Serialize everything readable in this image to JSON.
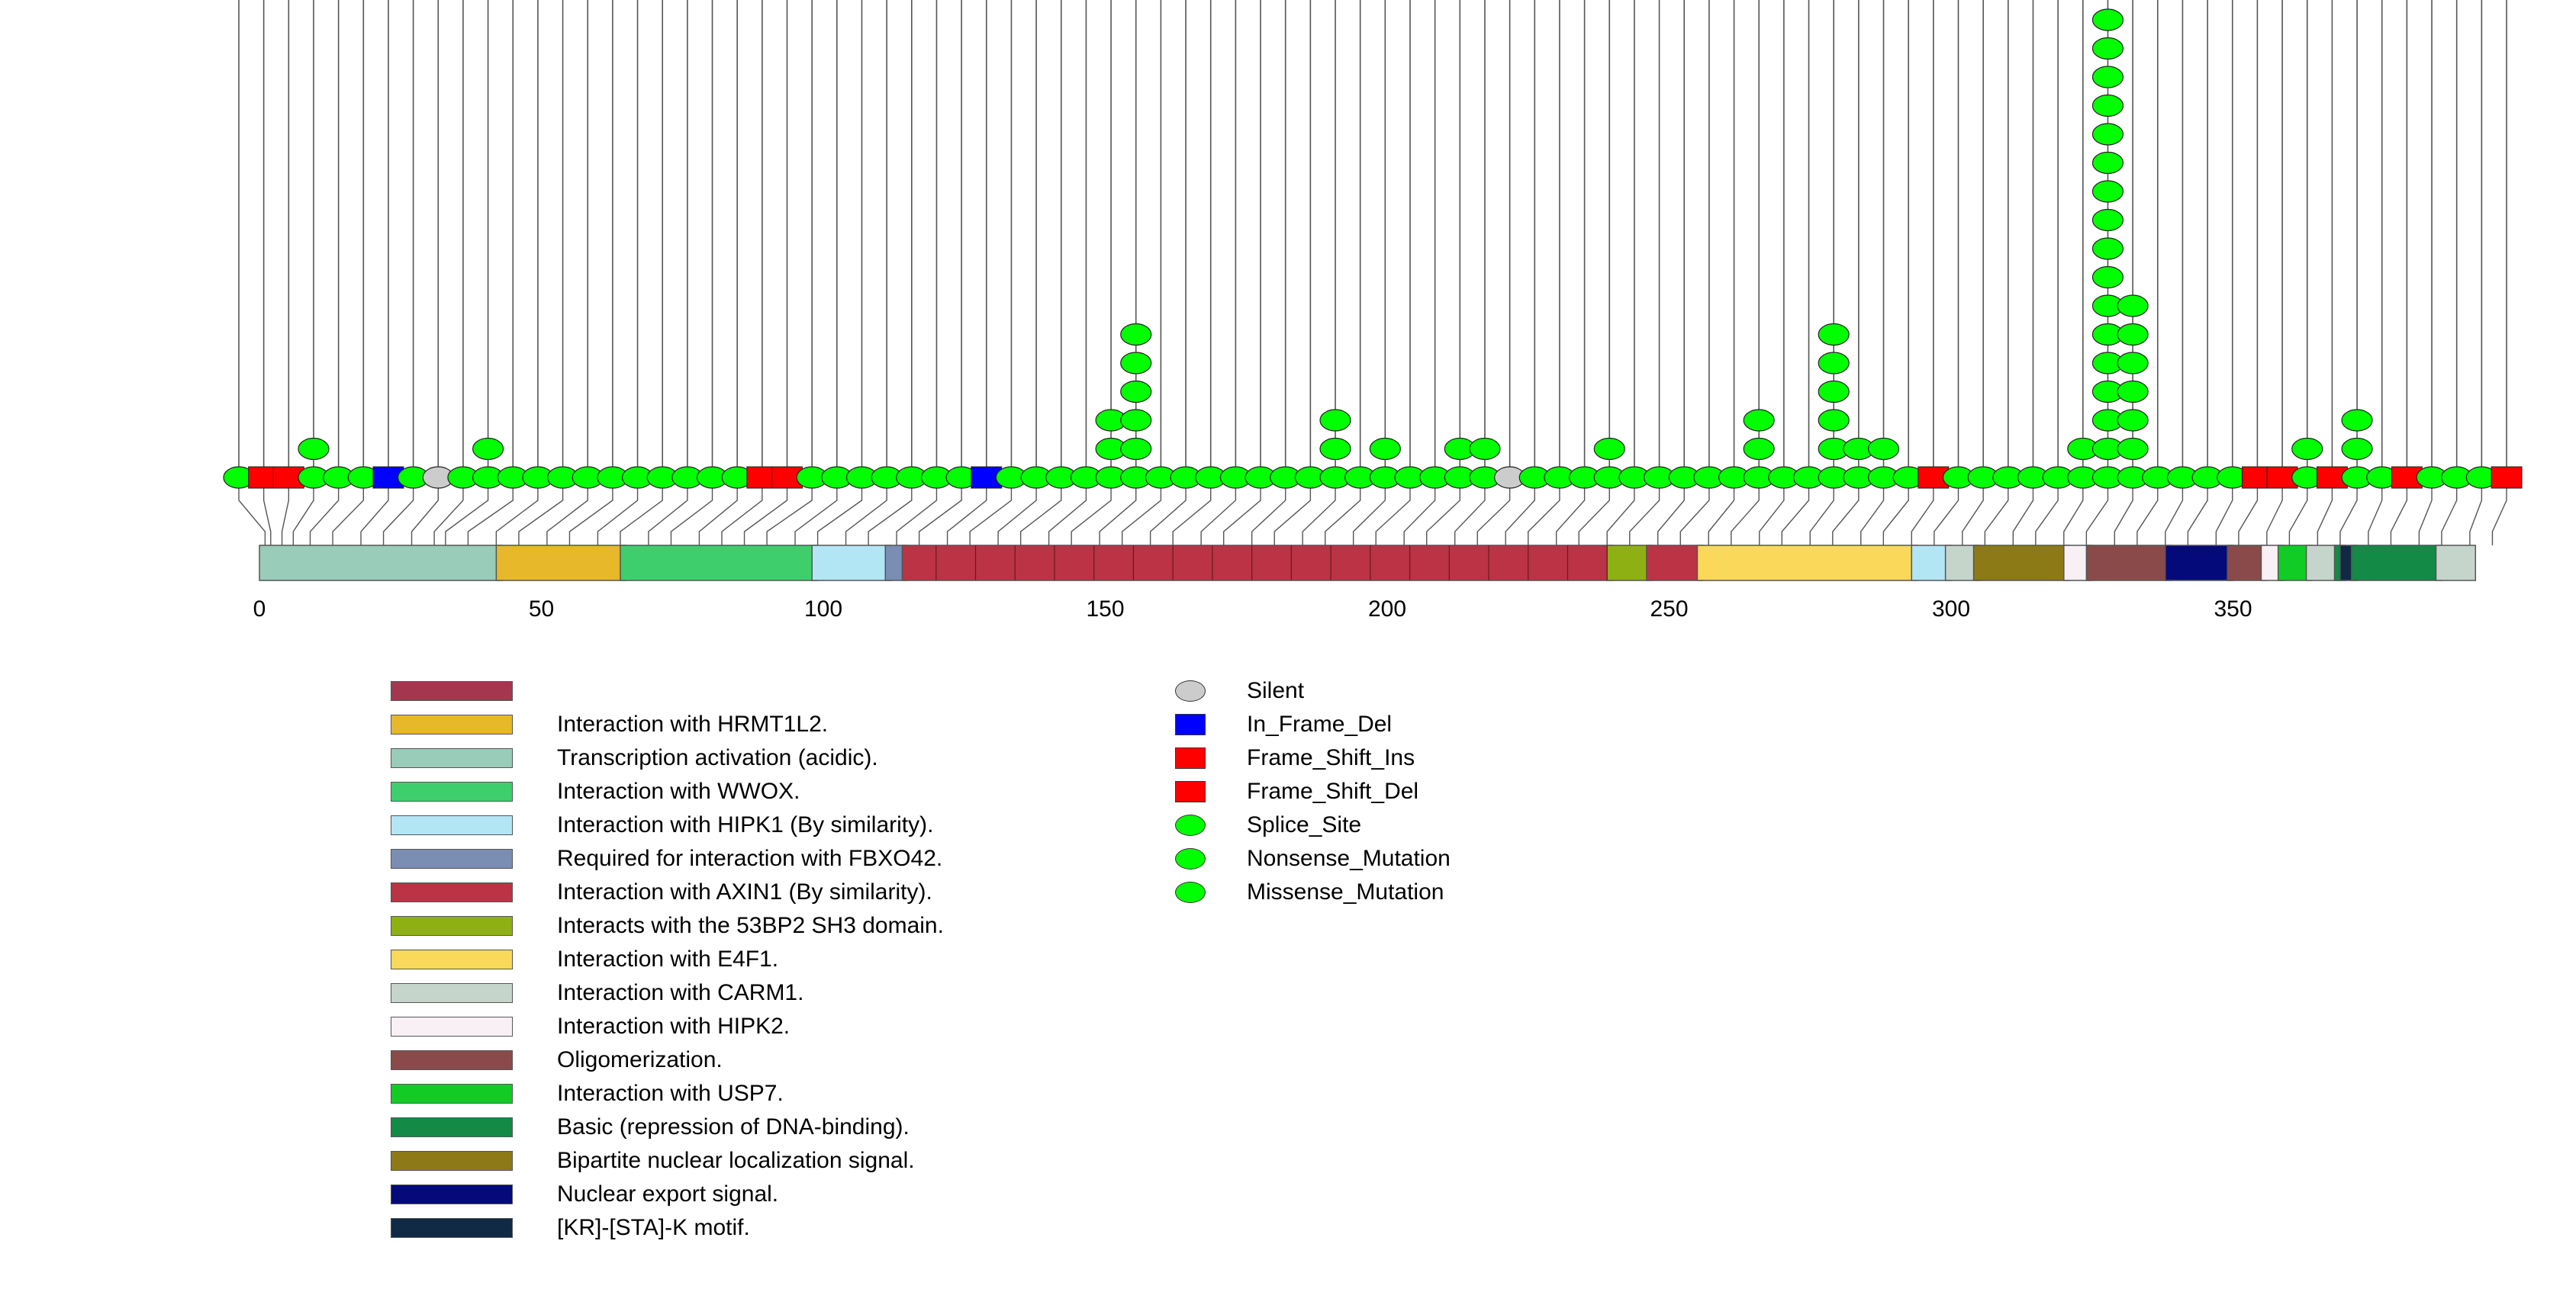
{
  "chart_data": {
    "type": "lollipop",
    "protein_length": 393,
    "x_ticks": [
      0,
      50,
      100,
      150,
      200,
      250,
      300,
      350
    ],
    "domains": [
      {
        "name": "Transcription activation (acidic).",
        "start": 1,
        "end": 43,
        "color": "#99CCB9"
      },
      {
        "name": "Interaction with HRMT1L2.",
        "start": 43,
        "end": 65,
        "color": "#E6B82A"
      },
      {
        "name": "Interaction with WWOX.",
        "start": 65,
        "end": 99,
        "color": "#3ECF6C"
      },
      {
        "name": "Interaction with HIPK1 (By similarity).",
        "start": 99,
        "end": 112,
        "color": "#B3E6F5"
      },
      {
        "name": "Required for interaction with FBXO42.",
        "start": 112,
        "end": 115,
        "color": "#7A8DB3"
      },
      {
        "name": "Interaction with AXIN1 (By similarity).",
        "start": 115,
        "end": 240,
        "color": "#BB3344"
      },
      {
        "name": "Interacts with the 53BP2 SH3 domain.",
        "start": 240,
        "end": 247,
        "color": "#8FB012"
      },
      {
        "name": "Interaction with AXIN1 (By similarity).",
        "start": 247,
        "end": 256,
        "color": "#BB3344"
      },
      {
        "name": "Interaction with E4F1.",
        "start": 256,
        "end": 294,
        "color": "#FAD85A"
      },
      {
        "name": "Interaction with HIPK1 (By similarity).",
        "start": 294,
        "end": 300,
        "color": "#B3E6F5"
      },
      {
        "name": "Interaction with CARM1.",
        "start": 300,
        "end": 305,
        "color": "#C6D5CC"
      },
      {
        "name": "Bipartite nuclear localization signal.",
        "start": 305,
        "end": 321,
        "color": "#8C7A16"
      },
      {
        "name": "Interaction with HIPK2.",
        "start": 321,
        "end": 325,
        "color": "#F8F0F5"
      },
      {
        "name": "Oligomerization.",
        "start": 325,
        "end": 339,
        "color": "#8A4A4A"
      },
      {
        "name": "Nuclear export signal.",
        "start": 339,
        "end": 350,
        "color": "#050A7A"
      },
      {
        "name": "Oligomerization.",
        "start": 350,
        "end": 356,
        "color": "#8A4A4A"
      },
      {
        "name": "Interaction with HIPK2.",
        "start": 356,
        "end": 359,
        "color": "#F8F0F5"
      },
      {
        "name": "Interaction with USP7.",
        "start": 359,
        "end": 364,
        "color": "#12CC25"
      },
      {
        "name": "Interaction with CARM1.",
        "start": 364,
        "end": 369,
        "color": "#C6D5CC"
      },
      {
        "name": "Basic (repression of DNA-binding).",
        "start": 369,
        "end": 370,
        "color": "#138A45"
      },
      {
        "name": "[KR]-[STA]-K motif.",
        "start": 370,
        "end": 372,
        "color": "#102A45"
      },
      {
        "name": "Basic (repression of DNA-binding).",
        "start": 372,
        "end": 387,
        "color": "#138A45"
      },
      {
        "name": "Interaction with CARM1.",
        "start": 387,
        "end": 393,
        "color": "#C6D5CC"
      }
    ],
    "mutations": [
      {
        "pos": 1,
        "count": 1,
        "type": "Missense_Mutation"
      },
      {
        "pos": 2,
        "count": 1,
        "type": "Frame_Shift_Del"
      },
      {
        "pos": 4,
        "count": 1,
        "type": "Frame_Shift_Del"
      },
      {
        "pos": 6,
        "count": 2,
        "type": "Missense_Mutation"
      },
      {
        "pos": 9,
        "count": 1,
        "type": "Missense_Mutation"
      },
      {
        "pos": 13,
        "count": 1,
        "type": "Missense_Mutation"
      },
      {
        "pos": 18,
        "count": 1,
        "type": "In_Frame_Del"
      },
      {
        "pos": 22,
        "count": 1,
        "type": "Missense_Mutation"
      },
      {
        "pos": 27,
        "count": 1,
        "type": "Silent"
      },
      {
        "pos": 31,
        "count": 1,
        "type": "Missense_Mutation"
      },
      {
        "pos": 33,
        "count": 2,
        "type": "Missense_Mutation"
      },
      {
        "pos": 37,
        "count": 1,
        "type": "Missense_Mutation"
      },
      {
        "pos": 42,
        "count": 1,
        "type": "Missense_Mutation"
      },
      {
        "pos": 46,
        "count": 1,
        "type": "Missense_Mutation"
      },
      {
        "pos": 51,
        "count": 1,
        "type": "Missense_Mutation"
      },
      {
        "pos": 55,
        "count": 1,
        "type": "Missense_Mutation"
      },
      {
        "pos": 60,
        "count": 1,
        "type": "Missense_Mutation"
      },
      {
        "pos": 64,
        "count": 1,
        "type": "Missense_Mutation"
      },
      {
        "pos": 69,
        "count": 1,
        "type": "Missense_Mutation"
      },
      {
        "pos": 73,
        "count": 1,
        "type": "Missense_Mutation"
      },
      {
        "pos": 78,
        "count": 1,
        "type": "Missense_Mutation"
      },
      {
        "pos": 82,
        "count": 1,
        "type": "Frame_Shift_Ins"
      },
      {
        "pos": 86,
        "count": 1,
        "type": "Frame_Shift_Del"
      },
      {
        "pos": 90,
        "count": 1,
        "type": "Missense_Mutation"
      },
      {
        "pos": 95,
        "count": 1,
        "type": "Missense_Mutation"
      },
      {
        "pos": 99,
        "count": 1,
        "type": "Missense_Mutation"
      },
      {
        "pos": 104,
        "count": 1,
        "type": "Missense_Mutation"
      },
      {
        "pos": 108,
        "count": 1,
        "type": "Missense_Mutation"
      },
      {
        "pos": 113,
        "count": 1,
        "type": "Missense_Mutation"
      },
      {
        "pos": 117,
        "count": 1,
        "type": "Missense_Mutation"
      },
      {
        "pos": 122,
        "count": 1,
        "type": "In_Frame_Del"
      },
      {
        "pos": 126,
        "count": 1,
        "type": "Missense_Mutation"
      },
      {
        "pos": 131,
        "count": 1,
        "type": "Missense_Mutation"
      },
      {
        "pos": 135,
        "count": 1,
        "type": "Missense_Mutation"
      },
      {
        "pos": 140,
        "count": 1,
        "type": "Missense_Mutation"
      },
      {
        "pos": 144,
        "count": 3,
        "type": "Missense_Mutation"
      },
      {
        "pos": 149,
        "count": 6,
        "type": "Missense_Mutation"
      },
      {
        "pos": 153,
        "count": 1,
        "type": "Missense_Mutation"
      },
      {
        "pos": 158,
        "count": 1,
        "type": "Missense_Mutation"
      },
      {
        "pos": 162,
        "count": 1,
        "type": "Missense_Mutation"
      },
      {
        "pos": 167,
        "count": 1,
        "type": "Missense_Mutation"
      },
      {
        "pos": 171,
        "count": 1,
        "type": "Missense_Mutation"
      },
      {
        "pos": 176,
        "count": 1,
        "type": "Missense_Mutation"
      },
      {
        "pos": 180,
        "count": 1,
        "type": "Missense_Mutation"
      },
      {
        "pos": 185,
        "count": 3,
        "type": "Missense_Mutation"
      },
      {
        "pos": 189,
        "count": 1,
        "type": "Missense_Mutation"
      },
      {
        "pos": 194,
        "count": 2,
        "type": "Missense_Mutation"
      },
      {
        "pos": 198,
        "count": 1,
        "type": "Missense_Mutation"
      },
      {
        "pos": 203,
        "count": 1,
        "type": "Missense_Mutation"
      },
      {
        "pos": 207,
        "count": 2,
        "type": "Missense_Mutation"
      },
      {
        "pos": 212,
        "count": 2,
        "type": "Missense_Mutation"
      },
      {
        "pos": 216,
        "count": 1,
        "type": "Silent"
      },
      {
        "pos": 221,
        "count": 1,
        "type": "Missense_Mutation"
      },
      {
        "pos": 225,
        "count": 1,
        "type": "Missense_Mutation"
      },
      {
        "pos": 230,
        "count": 1,
        "type": "Missense_Mutation"
      },
      {
        "pos": 234,
        "count": 2,
        "type": "Missense_Mutation"
      },
      {
        "pos": 239,
        "count": 1,
        "type": "Missense_Mutation"
      },
      {
        "pos": 243,
        "count": 1,
        "type": "Missense_Mutation"
      },
      {
        "pos": 248,
        "count": 1,
        "type": "Missense_Mutation"
      },
      {
        "pos": 252,
        "count": 1,
        "type": "Missense_Mutation"
      },
      {
        "pos": 257,
        "count": 1,
        "type": "Missense_Mutation"
      },
      {
        "pos": 261,
        "count": 3,
        "type": "Missense_Mutation"
      },
      {
        "pos": 266,
        "count": 1,
        "type": "Missense_Mutation"
      },
      {
        "pos": 270,
        "count": 1,
        "type": "Missense_Mutation"
      },
      {
        "pos": 275,
        "count": 6,
        "type": "Missense_Mutation"
      },
      {
        "pos": 279,
        "count": 2,
        "type": "Missense_Mutation"
      },
      {
        "pos": 284,
        "count": 2,
        "type": "Missense_Mutation"
      },
      {
        "pos": 288,
        "count": 1,
        "type": "Missense_Mutation"
      },
      {
        "pos": 293,
        "count": 1,
        "type": "Frame_Shift_Del"
      },
      {
        "pos": 297,
        "count": 1,
        "type": "Missense_Mutation"
      },
      {
        "pos": 302,
        "count": 1,
        "type": "Missense_Mutation"
      },
      {
        "pos": 306,
        "count": 1,
        "type": "Missense_Mutation"
      },
      {
        "pos": 311,
        "count": 1,
        "type": "Missense_Mutation"
      },
      {
        "pos": 315,
        "count": 1,
        "type": "Missense_Mutation"
      },
      {
        "pos": 320,
        "count": 2,
        "type": "Missense_Mutation"
      },
      {
        "pos": 324,
        "count": 17,
        "type": "Missense_Mutation"
      },
      {
        "pos": 329,
        "count": 7,
        "type": "Missense_Mutation"
      },
      {
        "pos": 333,
        "count": 1,
        "type": "Missense_Mutation"
      },
      {
        "pos": 338,
        "count": 1,
        "type": "Missense_Mutation"
      },
      {
        "pos": 342,
        "count": 1,
        "type": "Missense_Mutation"
      },
      {
        "pos": 347,
        "count": 1,
        "type": "Missense_Mutation"
      },
      {
        "pos": 351,
        "count": 1,
        "type": "Frame_Shift_Del"
      },
      {
        "pos": 356,
        "count": 1,
        "type": "Frame_Shift_Del"
      },
      {
        "pos": 360,
        "count": 2,
        "type": "Missense_Mutation"
      },
      {
        "pos": 365,
        "count": 1,
        "type": "Frame_Shift_Del"
      },
      {
        "pos": 369,
        "count": 3,
        "type": "Missense_Mutation"
      },
      {
        "pos": 374,
        "count": 1,
        "type": "Missense_Mutation"
      },
      {
        "pos": 378,
        "count": 1,
        "type": "Frame_Shift_Del"
      },
      {
        "pos": 383,
        "count": 1,
        "type": "Missense_Mutation"
      },
      {
        "pos": 387,
        "count": 1,
        "type": "Missense_Mutation"
      },
      {
        "pos": 392,
        "count": 1,
        "type": "Missense_Mutation"
      },
      {
        "pos": 396,
        "count": 1,
        "type": "Frame_Shift_Del"
      }
    ],
    "domain_legend": [
      {
        "label": "",
        "color": "#A5364F"
      },
      {
        "label": "Interaction with HRMT1L2.",
        "color": "#E6B82A"
      },
      {
        "label": "Transcription activation (acidic).",
        "color": "#99CCB9"
      },
      {
        "label": "Interaction with WWOX.",
        "color": "#3ECF6C"
      },
      {
        "label": "Interaction with HIPK1 (By similarity).",
        "color": "#B3E6F5"
      },
      {
        "label": "Required for interaction with FBXO42.",
        "color": "#7A8DB3"
      },
      {
        "label": "Interaction with AXIN1 (By similarity).",
        "color": "#BB3344"
      },
      {
        "label": "Interacts with the 53BP2 SH3 domain.",
        "color": "#8FB012"
      },
      {
        "label": "Interaction with E4F1.",
        "color": "#FAD85A"
      },
      {
        "label": "Interaction with CARM1.",
        "color": "#C6D5CC"
      },
      {
        "label": "Interaction with HIPK2.",
        "color": "#F8F0F5"
      },
      {
        "label": "Oligomerization.",
        "color": "#8A4A4A"
      },
      {
        "label": "Interaction with USP7.",
        "color": "#12CC25"
      },
      {
        "label": "Basic (repression of DNA-binding).",
        "color": "#138A45"
      },
      {
        "label": "Bipartite nuclear localization signal.",
        "color": "#8C7A16"
      },
      {
        "label": "Nuclear export signal.",
        "color": "#050A7A"
      },
      {
        "label": "[KR]-[STA]-K motif.",
        "color": "#102A45"
      }
    ],
    "mutation_legend": [
      {
        "label": "Silent",
        "color": "#CCCCCC",
        "shape": "oval"
      },
      {
        "label": "In_Frame_Del",
        "color": "#0000FF",
        "shape": "square"
      },
      {
        "label": "Frame_Shift_Ins",
        "color": "#FF0000",
        "shape": "square"
      },
      {
        "label": "Frame_Shift_Del",
        "color": "#FF0000",
        "shape": "square"
      },
      {
        "label": "Splice_Site",
        "color": "#00FF00",
        "shape": "oval"
      },
      {
        "label": "Nonsense_Mutation",
        "color": "#00FF00",
        "shape": "oval"
      },
      {
        "label": "Missense_Mutation",
        "color": "#00FF00",
        "shape": "oval"
      }
    ],
    "type_colors": {
      "Silent": "#CCCCCC",
      "In_Frame_Del": "#0000FF",
      "Frame_Shift_Ins": "#FF0000",
      "Frame_Shift_Del": "#FF0000",
      "Missense_Mutation": "#00FF00",
      "Nonsense_Mutation": "#00FF00",
      "Splice_Site": "#00FF00"
    }
  }
}
